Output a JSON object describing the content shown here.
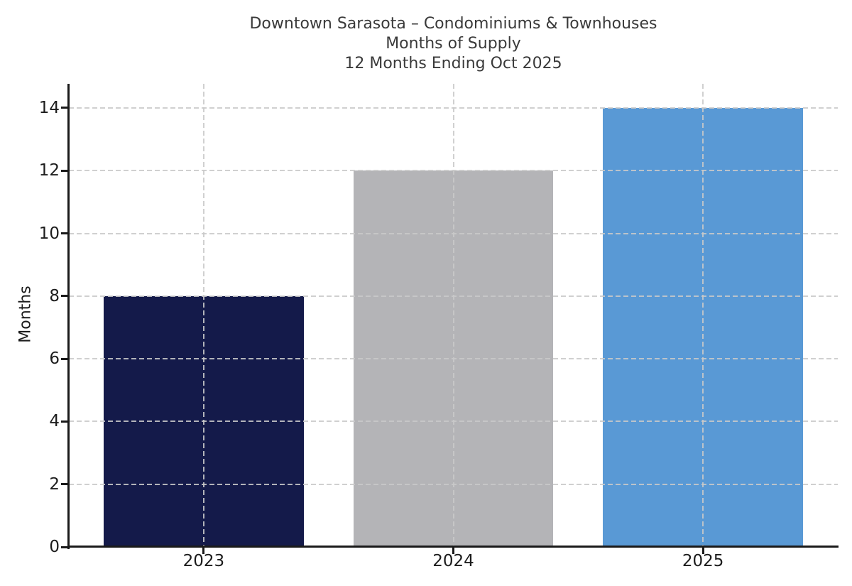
{
  "title": {
    "line1": "Downtown Sarasota – Condominiums & Townhouses",
    "line2": "Months of Supply",
    "line3": "12 Months Ending Oct 2025"
  },
  "chart_data": {
    "type": "bar",
    "categories": [
      "2023",
      "2024",
      "2025"
    ],
    "values": [
      8,
      12,
      14
    ],
    "bar_colors": [
      "#141a4a",
      "#b4b4b7",
      "#5999d5"
    ],
    "title": "Downtown Sarasota – Condominiums & Townhouses",
    "subtitle": "Months of Supply",
    "subtitle2": "12 Months Ending Oct 2025",
    "xlabel": "",
    "ylabel": "Months",
    "ylim": [
      0,
      14.77
    ],
    "yticks": [
      0,
      2,
      4,
      6,
      8,
      10,
      12,
      14
    ],
    "grid": "dashed-both-axes",
    "grid_color": "#c9c9c9",
    "legend": "none",
    "bar_relative_width": 0.8
  },
  "colors": {
    "background": "#ffffff",
    "axis": "#1a1a1a",
    "title_text": "#3a3a3a",
    "tick_text": "#1c1c1c"
  }
}
